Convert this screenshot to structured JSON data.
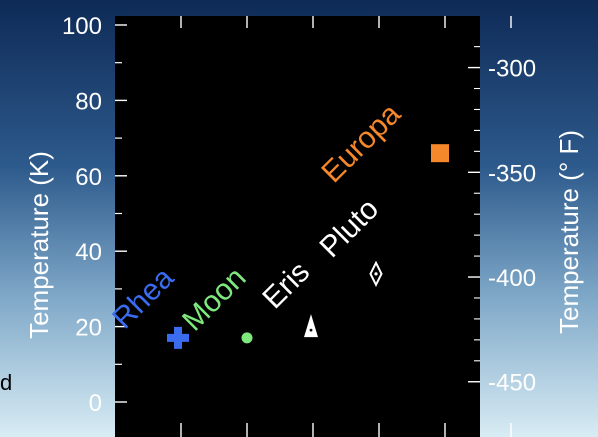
{
  "chart_data": {
    "type": "scatter",
    "title": "",
    "xlabel": "",
    "ylabel": "Temperature (K)",
    "ylabel_right": "Temperature (° F)",
    "ylim": [
      0,
      100
    ],
    "y_ticks": [
      "0",
      "20",
      "40",
      "60",
      "80",
      "100"
    ],
    "y_ticks_right": [
      "-450",
      "-400",
      "-350",
      "-300"
    ],
    "grid": false,
    "x_tick_count": 6,
    "points": [
      {
        "label": "Rhea",
        "y": 17,
        "color": "#3b6cf0",
        "marker": "plus"
      },
      {
        "label": "Moon",
        "y": 17,
        "color": "#7ee87e",
        "marker": "circle"
      },
      {
        "label": "Eris",
        "y": 18,
        "color": "#ffffff",
        "marker": "triangle"
      },
      {
        "label": "Pluto",
        "y": 34,
        "color": "#ffffff",
        "marker": "diamond"
      },
      {
        "label": "Europa",
        "y": 66,
        "color": "#f5882a",
        "marker": "square"
      }
    ]
  },
  "edge_text": "d"
}
